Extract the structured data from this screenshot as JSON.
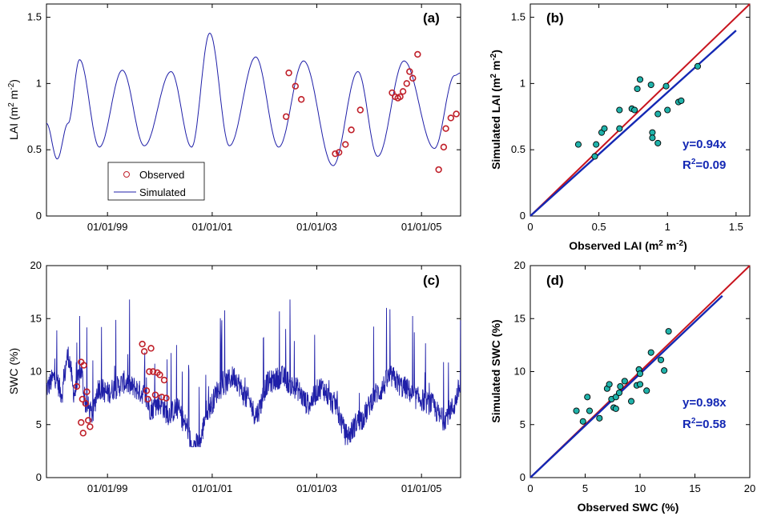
{
  "colors": {
    "simulated_line": "#1f1fa8",
    "observed_marker": "#c0202a",
    "scatter_fill": "#20b2aa",
    "one_to_one": "#c8141e",
    "fit_line": "#1428b4",
    "fit_text": "#1428b4"
  },
  "chart_data": [
    {
      "panel": "(a)",
      "type": "line",
      "xlabel": "",
      "ylabel": "LAI (m2 m-2)",
      "ylabel_parts": {
        "base": "LAI (m",
        "sup1": "2",
        "mid": " m",
        "sup2": "-2",
        "end": ")"
      },
      "x_range": [
        "1997-11-01",
        "2005-10-01"
      ],
      "x_ticks": [
        "01/01/99",
        "01/01/01",
        "01/01/03",
        "01/01/05"
      ],
      "ylim": [
        0,
        1.6
      ],
      "y_ticks": [
        "0",
        "0.5",
        "1",
        "1.5"
      ],
      "legend": {
        "placement": "lower-left",
        "entries": [
          "Observed",
          "Simulated"
        ]
      },
      "series": [
        {
          "name": "Simulated",
          "style": "line",
          "points": [
            [
              "1997-11-01",
              0.7
            ],
            [
              "1998-01-15",
              0.43
            ],
            [
              "1998-04-01",
              0.7
            ],
            [
              "1998-06-20",
              1.18
            ],
            [
              "1998-11-05",
              0.52
            ],
            [
              "1999-04-15",
              1.1
            ],
            [
              "1999-09-15",
              0.53
            ],
            [
              "2000-03-20",
              1.09
            ],
            [
              "2000-08-10",
              0.52
            ],
            [
              "2000-12-15",
              1.38
            ],
            [
              "2001-05-01",
              0.53
            ],
            [
              "2001-11-01",
              1.2
            ],
            [
              "2002-04-10",
              0.52
            ],
            [
              "2002-10-01",
              1.17
            ],
            [
              "2003-04-25",
              0.38
            ],
            [
              "2003-10-15",
              1.09
            ],
            [
              "2004-03-01",
              0.45
            ],
            [
              "2004-09-01",
              1.17
            ],
            [
              "2005-04-01",
              0.51
            ],
            [
              "2005-08-20",
              1.06
            ],
            [
              "2005-10-01",
              1.08
            ]
          ]
        },
        {
          "name": "Observed",
          "style": "markers",
          "points": [
            [
              "2002-06-01",
              0.75
            ],
            [
              "2002-06-20",
              1.08
            ],
            [
              "2002-08-05",
              0.98
            ],
            [
              "2002-09-15",
              0.88
            ],
            [
              "2003-05-10",
              0.47
            ],
            [
              "2003-06-05",
              0.48
            ],
            [
              "2003-07-20",
              0.54
            ],
            [
              "2003-08-30",
              0.65
            ],
            [
              "2003-11-01",
              0.8
            ],
            [
              "2004-06-10",
              0.93
            ],
            [
              "2004-07-01",
              0.9
            ],
            [
              "2004-07-20",
              0.89
            ],
            [
              "2004-08-05",
              0.9
            ],
            [
              "2004-08-25",
              0.94
            ],
            [
              "2004-09-20",
              1.0
            ],
            [
              "2004-10-10",
              1.09
            ],
            [
              "2004-11-01",
              1.04
            ],
            [
              "2004-12-05",
              1.22
            ],
            [
              "2005-05-01",
              0.35
            ],
            [
              "2005-06-05",
              0.52
            ],
            [
              "2005-06-20",
              0.66
            ],
            [
              "2005-07-25",
              0.74
            ],
            [
              "2005-09-01",
              0.77
            ]
          ]
        }
      ]
    },
    {
      "panel": "(b)",
      "type": "scatter",
      "xlabel": "Observed LAI (m2 m-2)",
      "ylabel": "Simulated LAI (m2 m-2)",
      "xlabel_parts": {
        "base": "Observed LAI (m",
        "sup1": "2",
        "mid": " m",
        "sup2": "-2",
        "end": ")"
      },
      "ylabel_parts": {
        "base": "Simulated LAI (m",
        "sup1": "2",
        "mid": " m",
        "sup2": "-2",
        "end": ")"
      },
      "xlim": [
        0,
        1.6
      ],
      "ylim": [
        0,
        1.6
      ],
      "x_ticks": [
        "0",
        "0.5",
        "1",
        "1.5"
      ],
      "y_ticks": [
        "0",
        "0.5",
        "1",
        "1.5"
      ],
      "one_to_one": [
        [
          0,
          0
        ],
        [
          1.6,
          1.6
        ]
      ],
      "fit_line": [
        [
          0,
          0
        ],
        [
          1.5,
          1.4
        ]
      ],
      "annotation": {
        "fit": "y=0.94x",
        "r2_prefix": "R",
        "r2_sup": "2",
        "r2_value": "=0.09"
      },
      "points": [
        [
          0.35,
          0.54
        ],
        [
          0.47,
          0.45
        ],
        [
          0.48,
          0.54
        ],
        [
          0.52,
          0.63
        ],
        [
          0.54,
          0.66
        ],
        [
          0.65,
          0.8
        ],
        [
          0.65,
          0.66
        ],
        [
          0.74,
          0.81
        ],
        [
          0.76,
          0.8
        ],
        [
          0.78,
          0.96
        ],
        [
          0.8,
          1.03
        ],
        [
          0.88,
          0.99
        ],
        [
          0.89,
          0.63
        ],
        [
          0.89,
          0.59
        ],
        [
          0.93,
          0.55
        ],
        [
          0.93,
          0.77
        ],
        [
          0.99,
          0.98
        ],
        [
          1.0,
          0.8
        ],
        [
          1.08,
          0.86
        ],
        [
          1.1,
          0.87
        ],
        [
          1.22,
          1.13
        ]
      ]
    },
    {
      "panel": "(c)",
      "type": "line",
      "xlabel": "",
      "ylabel": "SWC (%)",
      "x_range": [
        "1997-11-01",
        "2005-10-01"
      ],
      "x_ticks": [
        "01/01/99",
        "01/01/01",
        "01/01/03",
        "01/01/05"
      ],
      "ylim": [
        0,
        20
      ],
      "y_ticks": [
        "0",
        "5",
        "10",
        "15",
        "20"
      ],
      "series": [
        {
          "name": "Simulated",
          "style": "line",
          "points": [
            [
              "1997-11-01",
              8.5
            ],
            [
              "1998-01-01",
              9.5
            ],
            [
              "1998-02-15",
              8.0
            ],
            [
              "1998-04-01",
              11.5
            ],
            [
              "1998-05-15",
              8.0
            ],
            [
              "1998-07-01",
              10.0
            ],
            [
              "1998-08-01",
              7.0
            ],
            [
              "1998-09-15",
              6.0
            ],
            [
              "1998-11-01",
              8.5
            ],
            [
              "1999-01-01",
              8.0
            ],
            [
              "1999-03-01",
              8.5
            ],
            [
              "1999-05-01",
              9.0
            ],
            [
              "1999-07-01",
              8.5
            ],
            [
              "1999-09-01",
              8.0
            ],
            [
              "1999-11-01",
              6.5
            ],
            [
              "2000-01-01",
              7.0
            ],
            [
              "2000-03-01",
              6.0
            ],
            [
              "2000-05-01",
              6.5
            ],
            [
              "2000-07-01",
              5.0
            ],
            [
              "2000-08-15",
              3.0
            ],
            [
              "2000-10-01",
              3.2
            ],
            [
              "2000-12-01",
              6.5
            ],
            [
              "2001-03-01",
              8.5
            ],
            [
              "2001-06-01",
              9.5
            ],
            [
              "2001-09-01",
              7.5
            ],
            [
              "2001-11-01",
              6.0
            ],
            [
              "2002-02-01",
              9.0
            ],
            [
              "2002-05-01",
              9.5
            ],
            [
              "2002-08-01",
              8.5
            ],
            [
              "2002-11-01",
              7.0
            ],
            [
              "2003-02-01",
              8.5
            ],
            [
              "2003-05-01",
              7.0
            ],
            [
              "2003-08-01",
              4.0
            ],
            [
              "2003-11-01",
              5.5
            ],
            [
              "2004-03-01",
              8.0
            ],
            [
              "2004-06-01",
              9.5
            ],
            [
              "2004-09-01",
              8.5
            ],
            [
              "2004-12-01",
              7.5
            ],
            [
              "2005-03-01",
              7.0
            ],
            [
              "2005-06-01",
              5.5
            ],
            [
              "2005-08-01",
              6.5
            ],
            [
              "2005-10-01",
              8.5
            ]
          ]
        },
        {
          "name": "Observed",
          "style": "markers",
          "points": [
            [
              "1998-06-01",
              8.6
            ],
            [
              "1998-07-01",
              10.9
            ],
            [
              "1998-07-10",
              7.4
            ],
            [
              "1998-07-20",
              10.6
            ],
            [
              "1998-08-01",
              7.0
            ],
            [
              "1998-08-10",
              8.1
            ],
            [
              "1998-08-20",
              5.4
            ],
            [
              "1998-09-01",
              4.8
            ],
            [
              "1998-07-01",
              5.2
            ],
            [
              "1998-07-15",
              4.2
            ],
            [
              "1999-09-01",
              12.6
            ],
            [
              "1999-09-15",
              11.9
            ],
            [
              "1999-10-01",
              8.2
            ],
            [
              "1999-10-10",
              7.4
            ],
            [
              "1999-10-20",
              10.0
            ],
            [
              "1999-11-01",
              12.2
            ],
            [
              "1999-11-15",
              10.0
            ],
            [
              "1999-12-01",
              7.8
            ],
            [
              "1999-12-15",
              9.9
            ],
            [
              "2000-01-01",
              9.7
            ],
            [
              "2000-01-15",
              7.6
            ],
            [
              "2000-02-01",
              9.2
            ],
            [
              "2000-02-15",
              7.5
            ]
          ]
        }
      ]
    },
    {
      "panel": "(d)",
      "type": "scatter",
      "xlabel": "Observed SWC (%)",
      "ylabel": "Simulated SWC  (%)",
      "xlim": [
        0,
        20
      ],
      "ylim": [
        0,
        20
      ],
      "x_ticks": [
        "0",
        "5",
        "10",
        "15",
        "20"
      ],
      "y_ticks": [
        "0",
        "5",
        "10",
        "15",
        "20"
      ],
      "one_to_one": [
        [
          0,
          0
        ],
        [
          20,
          20
        ]
      ],
      "fit_line": [
        [
          0,
          0
        ],
        [
          17.5,
          17.15
        ]
      ],
      "annotation": {
        "fit": "y=0.98x",
        "r2_prefix": "R",
        "r2_sup": "2",
        "r2_value": "=0.58"
      },
      "points": [
        [
          4.2,
          6.3
        ],
        [
          4.8,
          5.3
        ],
        [
          5.2,
          7.6
        ],
        [
          5.4,
          6.3
        ],
        [
          6.3,
          5.6
        ],
        [
          7.0,
          8.4
        ],
        [
          7.2,
          8.8
        ],
        [
          7.4,
          7.4
        ],
        [
          7.6,
          6.6
        ],
        [
          7.8,
          7.6
        ],
        [
          7.8,
          6.5
        ],
        [
          8.1,
          8.0
        ],
        [
          8.2,
          8.6
        ],
        [
          8.6,
          9.1
        ],
        [
          9.2,
          7.2
        ],
        [
          9.7,
          8.7
        ],
        [
          9.9,
          10.2
        ],
        [
          10.0,
          8.8
        ],
        [
          10.0,
          9.8
        ],
        [
          10.6,
          8.2
        ],
        [
          11.0,
          11.8
        ],
        [
          11.9,
          11.1
        ],
        [
          12.2,
          10.1
        ],
        [
          12.6,
          13.8
        ]
      ]
    }
  ]
}
